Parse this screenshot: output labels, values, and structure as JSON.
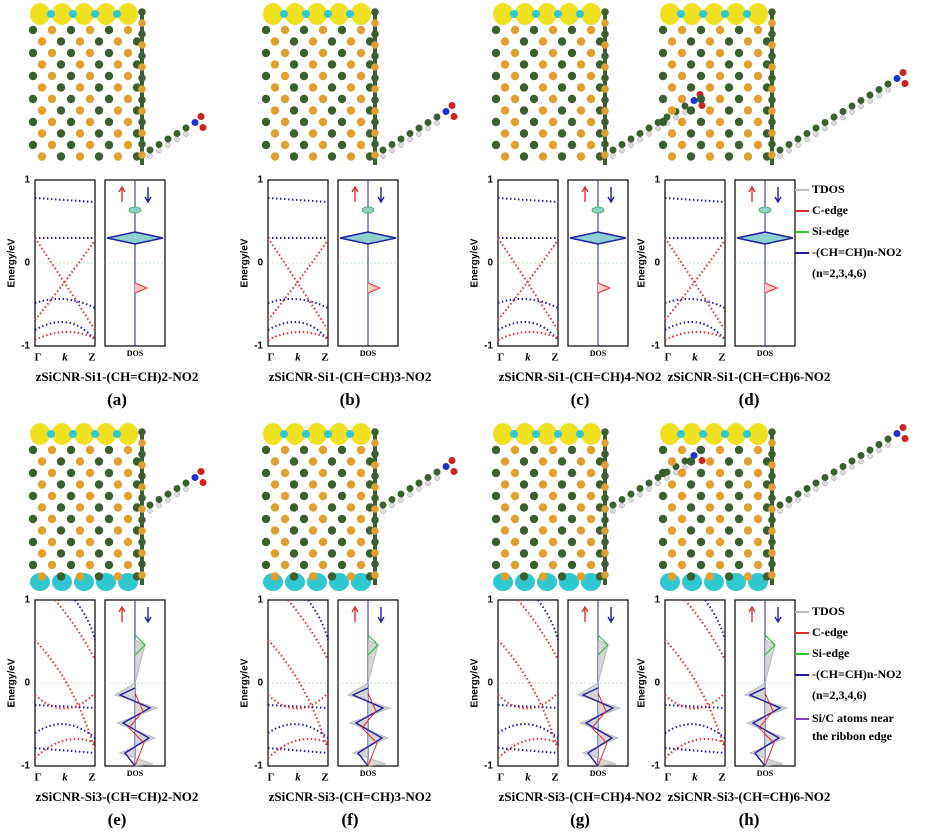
{
  "axes": {
    "ylabel": "Energy/eV",
    "yticks": [
      "1",
      "0",
      "-1"
    ],
    "xticks": [
      "Γ",
      "k",
      "Z"
    ],
    "dos_label": "DOS"
  },
  "panels": [
    {
      "caption": "zSiCNR-Si1-(CH=CH)2-NO2",
      "label": "(a)"
    },
    {
      "caption": "zSiCNR-Si1-(CH=CH)3-NO2",
      "label": "(b)"
    },
    {
      "caption": "zSiCNR-Si1-(CH=CH)4-NO2",
      "label": "(c)"
    },
    {
      "caption": "zSiCNR-Si1-(CH=CH)6-NO2",
      "label": "(d)"
    },
    {
      "caption": "zSiCNR-Si3-(CH=CH)2-NO2",
      "label": "(e)"
    },
    {
      "caption": "zSiCNR-Si3-(CH=CH)3-NO2",
      "label": "(f)"
    },
    {
      "caption": "zSiCNR-Si3-(CH=CH)4-NO2",
      "label": "(g)"
    },
    {
      "caption": "zSiCNR-Si3-(CH=CH)6-NO2",
      "label": "(h)"
    }
  ],
  "legends": [
    {
      "items": [
        {
          "name": "TDOS",
          "color": "#bbbbbb"
        },
        {
          "name": "C-edge",
          "color": "#e03030"
        },
        {
          "name": "Si-edge",
          "color": "#30c030"
        },
        {
          "name": "-(CH=CH)n-NO2",
          "color": "#2020a0"
        }
      ],
      "note": "(n=2,3,4,6)"
    },
    {
      "items": [
        {
          "name": "TDOS",
          "color": "#bbbbbb"
        },
        {
          "name": "C-edge",
          "color": "#e03030"
        },
        {
          "name": "Si-edge",
          "color": "#30c030"
        },
        {
          "name": "-(CH=CH)n-NO2",
          "color": "#2020a0"
        }
      ],
      "note": "(n=2,3,4,6)",
      "extra": {
        "lines": [
          "Si/C atoms near",
          "the ribbon edge"
        ],
        "color": "#8040c0"
      }
    }
  ]
}
